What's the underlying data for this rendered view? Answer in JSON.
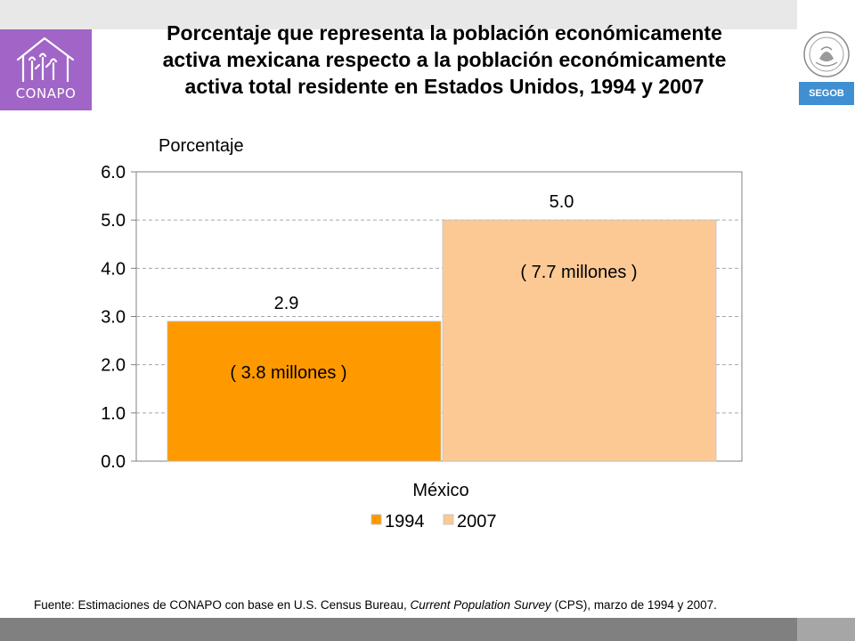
{
  "header": {
    "title_lines": [
      "Porcentaje que representa la población económicamente",
      "activa  mexicana respecto a la población económicamente",
      "activa total residente en Estados Unidos, 1994 y 2007"
    ],
    "conapo_label": "CONAPO",
    "segob_label": "SEGOB"
  },
  "chart_data": {
    "type": "bar",
    "title": "Porcentaje que representa la población económicamente activa  mexicana respecto a la población económicamente activa total residente en Estados Unidos, 1994 y 2007",
    "ylabel": "Porcentaje",
    "xlabel": "México",
    "categories": [
      "México"
    ],
    "ylim": [
      0,
      6
    ],
    "yticks": [
      "0.0",
      "1.0",
      "2.0",
      "3.0",
      "4.0",
      "5.0",
      "6.0"
    ],
    "grid": true,
    "legend_position": "bottom",
    "series": [
      {
        "name": "1994",
        "values": [
          2.9
        ],
        "label": "2.9",
        "annotation": "( 3.8 millones )",
        "color": "#ff9900"
      },
      {
        "name": "2007",
        "values": [
          5.0
        ],
        "label": "5.0",
        "annotation": "( 7.7 millones )",
        "color": "#fcc995"
      }
    ]
  },
  "footer": {
    "source_prefix": "Fuente: Estimaciones de CONAPO con base en U.S. Census Bureau, ",
    "source_italic": "Current Population Survey",
    "source_suffix": " (CPS), marzo de 1994 y 2007."
  },
  "colors": {
    "conapo_purple": "#a065c7",
    "segob_blue": "#3f8fd2",
    "band_gray": "#808080"
  }
}
